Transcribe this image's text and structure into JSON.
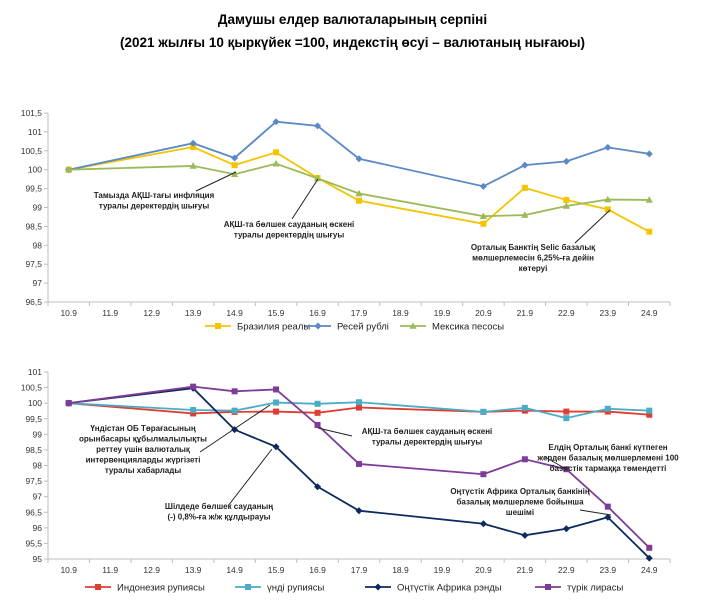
{
  "title_line1": "Дамушы елдер валюталарының серпіні",
  "title_line2": "(2021 жылғы 10 қыркүйек =100, индекстің өсуі – валютаның нығаюы)",
  "chart_data": [
    {
      "type": "line",
      "categories": [
        "10.9",
        "11.9",
        "12.9",
        "13.9",
        "14.9",
        "15.9",
        "16.9",
        "17.9",
        "18.9",
        "19.9",
        "20.9",
        "21.9",
        "22.9",
        "23.9",
        "24.9"
      ],
      "ylim": [
        96.5,
        101.5
      ],
      "yticks": [
        "96,5",
        "97",
        "97,5",
        "98",
        "98,5",
        "99",
        "99,5",
        "100",
        "100,5",
        "101",
        "101,5"
      ],
      "series": [
        {
          "name": "Бразилия реалы",
          "color": "#f5c400",
          "marker": "square",
          "values": [
            100,
            null,
            null,
            100.6,
            100.12,
            100.46,
            99.78,
            99.18,
            null,
            null,
            98.57,
            99.52,
            99.2,
            98.95,
            98.36
          ]
        },
        {
          "name": "Ресей рублі",
          "color": "#5b88c6",
          "marker": "diamond",
          "values": [
            100,
            null,
            null,
            100.7,
            100.31,
            101.27,
            101.16,
            100.29,
            null,
            null,
            99.56,
            100.12,
            100.22,
            100.59,
            100.42
          ]
        },
        {
          "name": "Мексика песосы",
          "color": "#9bbb59",
          "marker": "triangle",
          "values": [
            100,
            null,
            null,
            100.1,
            99.88,
            100.16,
            99.77,
            99.37,
            null,
            null,
            98.77,
            98.8,
            99.04,
            99.21,
            99.2
          ]
        }
      ],
      "annotations": [
        {
          "lines": [
            "Тамызда АҚШ-тағы инфляция",
            "туралы деректердің шығуы"
          ]
        },
        {
          "lines": [
            "АҚШ-та бөлшек сауданың өскені",
            "туралы деректердің шығуы"
          ]
        },
        {
          "lines": [
            "Орталық Банктің Selic базалық",
            "мөлшерлемесін 6,25%-ға дейін",
            "көтеруі"
          ]
        }
      ]
    },
    {
      "type": "line",
      "categories": [
        "10.9",
        "11.9",
        "12.9",
        "13.9",
        "14.9",
        "15.9",
        "16.9",
        "17.9",
        "18.9",
        "19.9",
        "20.9",
        "21.9",
        "22.9",
        "23.9",
        "24.9"
      ],
      "ylim": [
        95,
        101
      ],
      "yticks": [
        "95",
        "95,5",
        "96",
        "96,5",
        "97",
        "97,5",
        "98",
        "98,5",
        "99",
        "99,5",
        "100",
        "100,5",
        "101"
      ],
      "series": [
        {
          "name": "Индонезия рупиясы",
          "color": "#e03c31",
          "marker": "square",
          "values": [
            100,
            null,
            null,
            99.67,
            99.72,
            99.73,
            99.69,
            99.86,
            null,
            null,
            99.72,
            99.76,
            99.73,
            99.73,
            99.63
          ]
        },
        {
          "name": "үнді рупиясы",
          "color": "#4bacc6",
          "marker": "square",
          "values": [
            100,
            null,
            null,
            99.78,
            99.76,
            100.02,
            99.98,
            100.03,
            null,
            null,
            99.72,
            99.85,
            99.52,
            99.82,
            99.76
          ]
        },
        {
          "name": "Оңтүстік Африка рэнды",
          "color": "#0d2a5e",
          "marker": "diamond",
          "values": [
            100,
            null,
            null,
            100.48,
            99.15,
            98.6,
            97.32,
            96.55,
            null,
            null,
            96.13,
            95.76,
            95.97,
            96.34,
            95.03
          ]
        },
        {
          "name": "түрік лирасы",
          "color": "#7d3c98",
          "marker": "square",
          "values": [
            100,
            null,
            null,
            100.53,
            100.38,
            100.44,
            99.3,
            98.05,
            null,
            null,
            97.72,
            98.2,
            97.88,
            96.68,
            95.36
          ]
        }
      ],
      "annotations": [
        {
          "lines": [
            "Үндістан ОБ Төрағасының",
            "орынбасары құбылмалылықты",
            "реттеу үшін валюталық",
            "интервенцияларды жүргізеті",
            "туралы хабарлады"
          ]
        },
        {
          "lines": [
            "АҚШ-та бөлшек сауданың өскені",
            "туралы деректердің шығуы"
          ]
        },
        {
          "lines": [
            "Елдің Орталық банкі күтпеген",
            "жерден базалық мөлшерлемені 100",
            "базистік тармаққа төмендетті"
          ]
        },
        {
          "lines": [
            "Шілдеде бөлшек сауданың",
            "(-) 0,8%-ға  ж/ж құлдырауы"
          ]
        },
        {
          "lines": [
            "Оңтүстік Африка Орталық банкінің",
            "базалық мөлшерлеме бойынша",
            "шешімі"
          ]
        }
      ]
    }
  ]
}
